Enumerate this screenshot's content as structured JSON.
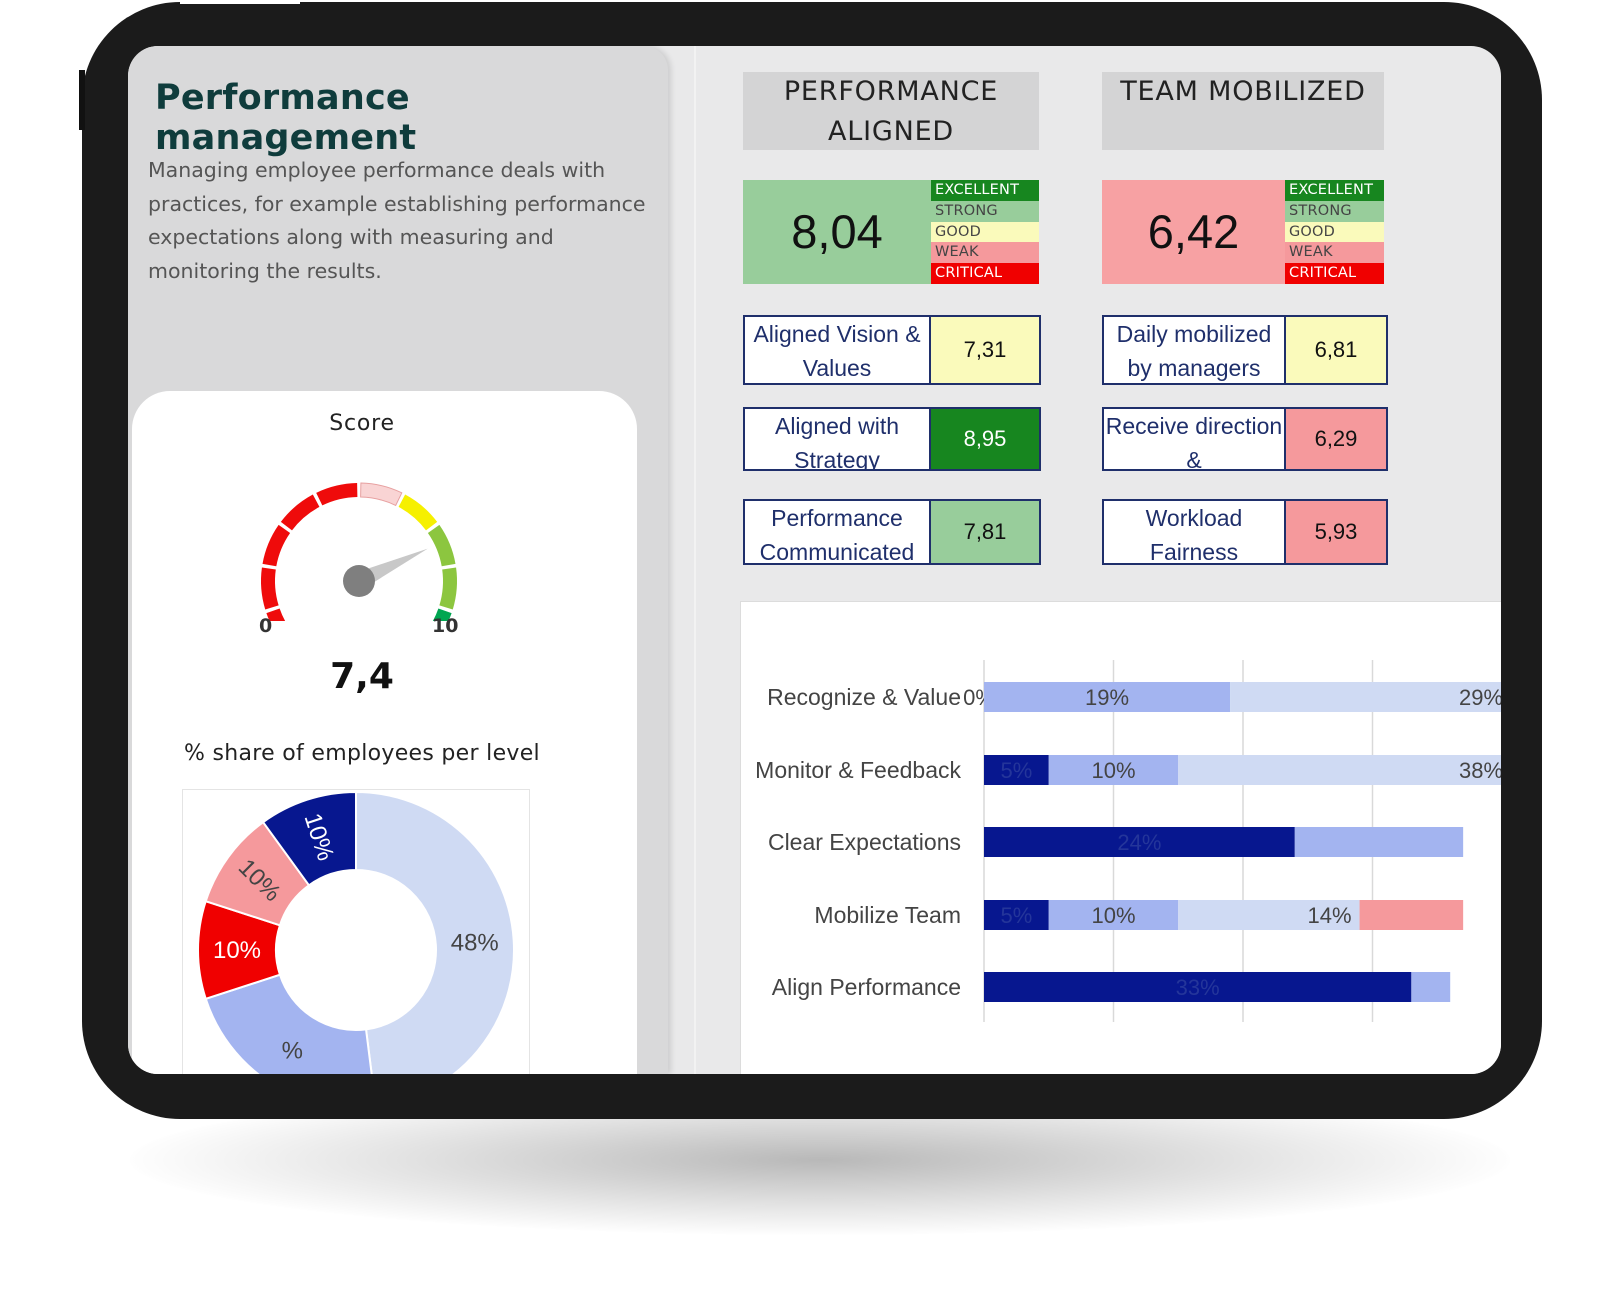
{
  "header": {
    "title": "Performance management",
    "description": "Managing employee performance deals with practices, for example establishing performance expectations along with measuring and monitoring the results."
  },
  "score_card": {
    "title": "Score",
    "gauge_min": "0",
    "gauge_max": "10",
    "gauge_value": 7.4,
    "gauge_value_label": "7,4",
    "share_title": "% share of employees per level"
  },
  "kpis": [
    {
      "title": "PERFORMANCE ALIGNED",
      "score": "8,04",
      "score_color": "#98cd9b",
      "levels": [
        "EXCELLENT",
        "STRONG",
        "GOOD",
        "WEAK",
        "CRITICAL"
      ],
      "metrics": [
        {
          "label": "Aligned Vision & Values",
          "value": "7,31",
          "color": "#fafabb"
        },
        {
          "label": "Aligned with Strategy",
          "value": "8,95",
          "color": "#17861f",
          "text_color": "#ffffff"
        },
        {
          "label": "Performance Communicated",
          "value": "7,81",
          "color": "#98cd9b"
        }
      ]
    },
    {
      "title": "TEAM MOBILIZED",
      "score": "6,42",
      "score_color": "#f7a1a3",
      "levels": [
        "EXCELLENT",
        "STRONG",
        "GOOD",
        "WEAK",
        "CRITICAL"
      ],
      "metrics": [
        {
          "label": "Daily mobilized by managers",
          "value": "6,81",
          "color": "#fafabb"
        },
        {
          "label": "Receive direction &",
          "value": "6,29",
          "color": "#f5999c"
        },
        {
          "label": "Workload Fairness",
          "value": "5,93",
          "color": "#f5999c"
        }
      ]
    }
  ],
  "chart_data": [
    {
      "type": "pie",
      "title": "% share of employees per level",
      "series": [
        {
          "label": "48%",
          "value": 48,
          "color": "#cfdaf3"
        },
        {
          "label": "%",
          "value": 22,
          "color": "#a3b4f0"
        },
        {
          "label": "10%",
          "value": 10,
          "color": "#f00000"
        },
        {
          "label": "10%",
          "value": 10,
          "color": "#f5999c"
        },
        {
          "label": "10%",
          "value": 10,
          "color": "#07178f"
        }
      ]
    },
    {
      "type": "bar",
      "orientation": "horizontal-stacked",
      "categories": [
        "Recognize & Value",
        "Monitor & Feedback",
        "Clear Expectations",
        "Mobilize Team",
        "Align Performance"
      ],
      "series": [
        {
          "color": "#07178f",
          "values": [
            0,
            5,
            24,
            5,
            33
          ],
          "labels": [
            "0%",
            "5%",
            "24%",
            "5%",
            "33%"
          ]
        },
        {
          "color": "#a3b4f0",
          "values": [
            19,
            10,
            13,
            10,
            3
          ],
          "labels": [
            "19%",
            "10%",
            "",
            "10%",
            ""
          ]
        },
        {
          "color": "#cfdaf3",
          "values": [
            29,
            38,
            0,
            14,
            0
          ],
          "labels": [
            "29%",
            "38%",
            "",
            "14%",
            ""
          ]
        },
        {
          "color": "#f5999c",
          "values": [
            0,
            0,
            0,
            8,
            0
          ],
          "labels": [
            "",
            "",
            "",
            "",
            ""
          ]
        }
      ]
    }
  ]
}
